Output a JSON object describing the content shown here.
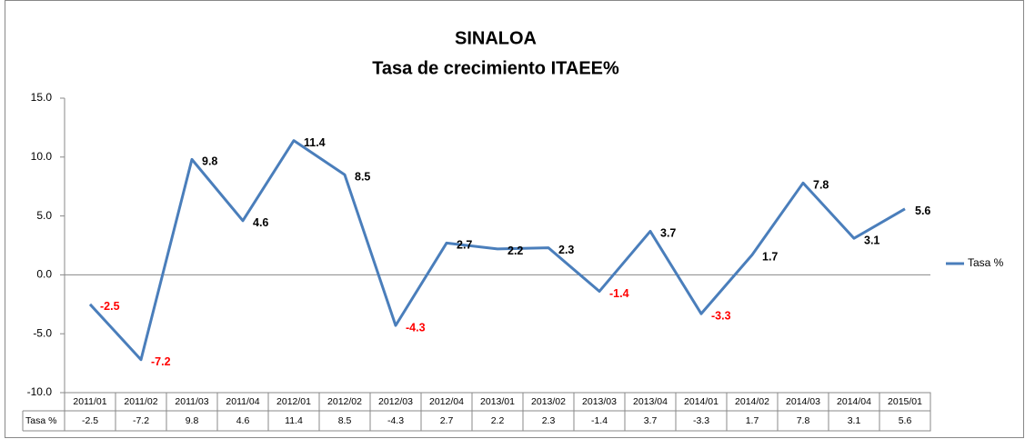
{
  "chart_data": {
    "type": "line",
    "title": "SINALOA",
    "subtitle": "Tasa  de crecimiento ITAEE%",
    "categories": [
      "2011/01",
      "2011/02",
      "2011/03",
      "2011/04",
      "2012/01",
      "2012/02",
      "2012/03",
      "2012/04",
      "2013/01",
      "2013/02",
      "2013/03",
      "2013/04",
      "2014/01",
      "2014/02",
      "2014/03",
      "2014/04",
      "2015/01"
    ],
    "series": [
      {
        "name": "Tasa %",
        "color": "#4a7ebb",
        "values": [
          -2.5,
          -7.2,
          9.8,
          4.6,
          11.4,
          8.5,
          -4.3,
          2.7,
          2.2,
          2.3,
          -1.4,
          3.7,
          -3.3,
          1.7,
          7.8,
          3.1,
          5.6
        ]
      }
    ],
    "ylim": [
      -10,
      15
    ],
    "yticks": [
      {
        "value": -10,
        "label": "-10.0"
      },
      {
        "value": -5,
        "label": "-5.0"
      },
      {
        "value": 0,
        "label": "0.0"
      },
      {
        "value": 5,
        "label": "5.0"
      },
      {
        "value": 10,
        "label": "10.0"
      },
      {
        "value": 15,
        "label": "15.0"
      }
    ],
    "grid": false,
    "legend": "right",
    "label_color": "#000000",
    "negative_label_color": "#ff0000"
  }
}
